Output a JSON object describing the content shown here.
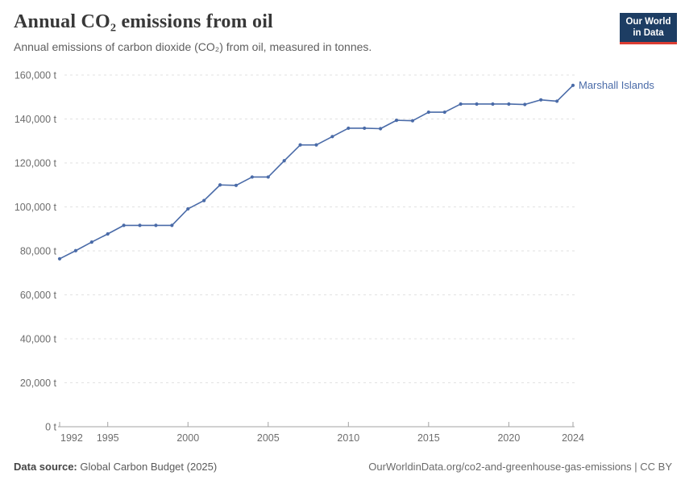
{
  "header": {
    "title": "Annual CO₂ emissions from oil",
    "subtitle": "Annual emissions of carbon dioxide (CO₂) from oil, measured in tonnes."
  },
  "logo": {
    "line1": "Our World",
    "line2": "in Data",
    "bg_color": "#1d3d63",
    "accent_color": "#dc3d33"
  },
  "chart_data": {
    "type": "line",
    "title": "Annual CO₂ emissions from oil",
    "xlabel": "",
    "ylabel": "",
    "unit": "t",
    "grid": "horizontal-dashed",
    "legend_position": "end-of-line-label",
    "xlim": [
      1992,
      2024
    ],
    "ylim": [
      0,
      160000
    ],
    "x": [
      1992,
      1993,
      1994,
      1995,
      1996,
      1997,
      1998,
      1999,
      2000,
      2001,
      2002,
      2003,
      2004,
      2005,
      2006,
      2007,
      2008,
      2009,
      2010,
      2011,
      2012,
      2013,
      2014,
      2015,
      2016,
      2017,
      2018,
      2019,
      2020,
      2021,
      2022,
      2023,
      2024
    ],
    "series": [
      {
        "name": "Marshall Islands",
        "color": "#4a6ba8",
        "values": [
          76400,
          80100,
          84000,
          87700,
          91600,
          91600,
          91600,
          91600,
          99100,
          102900,
          110000,
          109800,
          113600,
          113600,
          121000,
          128200,
          128200,
          132000,
          135800,
          135800,
          135600,
          139400,
          139200,
          143100,
          143100,
          146800,
          146800,
          146800,
          146800,
          146600,
          148700,
          148100,
          155300
        ]
      }
    ],
    "yticks": [
      {
        "value": 0,
        "label": "0 t"
      },
      {
        "value": 20000,
        "label": "20,000 t"
      },
      {
        "value": 40000,
        "label": "40,000 t"
      },
      {
        "value": 60000,
        "label": "60,000 t"
      },
      {
        "value": 80000,
        "label": "80,000 t"
      },
      {
        "value": 100000,
        "label": "100,000 t"
      },
      {
        "value": 120000,
        "label": "120,000 t"
      },
      {
        "value": 140000,
        "label": "140,000 t"
      },
      {
        "value": 160000,
        "label": "160,000 t"
      }
    ],
    "xticks": [
      1992,
      1995,
      2000,
      2005,
      2010,
      2015,
      2020,
      2024
    ]
  },
  "footer": {
    "source_label": "Data source:",
    "source_value": "Global Carbon Budget (2025)",
    "note": "OurWorldinData.org/co2-and-greenhouse-gas-emissions | CC BY"
  },
  "colors": {
    "line": "#4a6ba8",
    "gridline": "#e2e2e2",
    "axis": "#a3a3a3",
    "tick_label": "#6d6d6d"
  }
}
